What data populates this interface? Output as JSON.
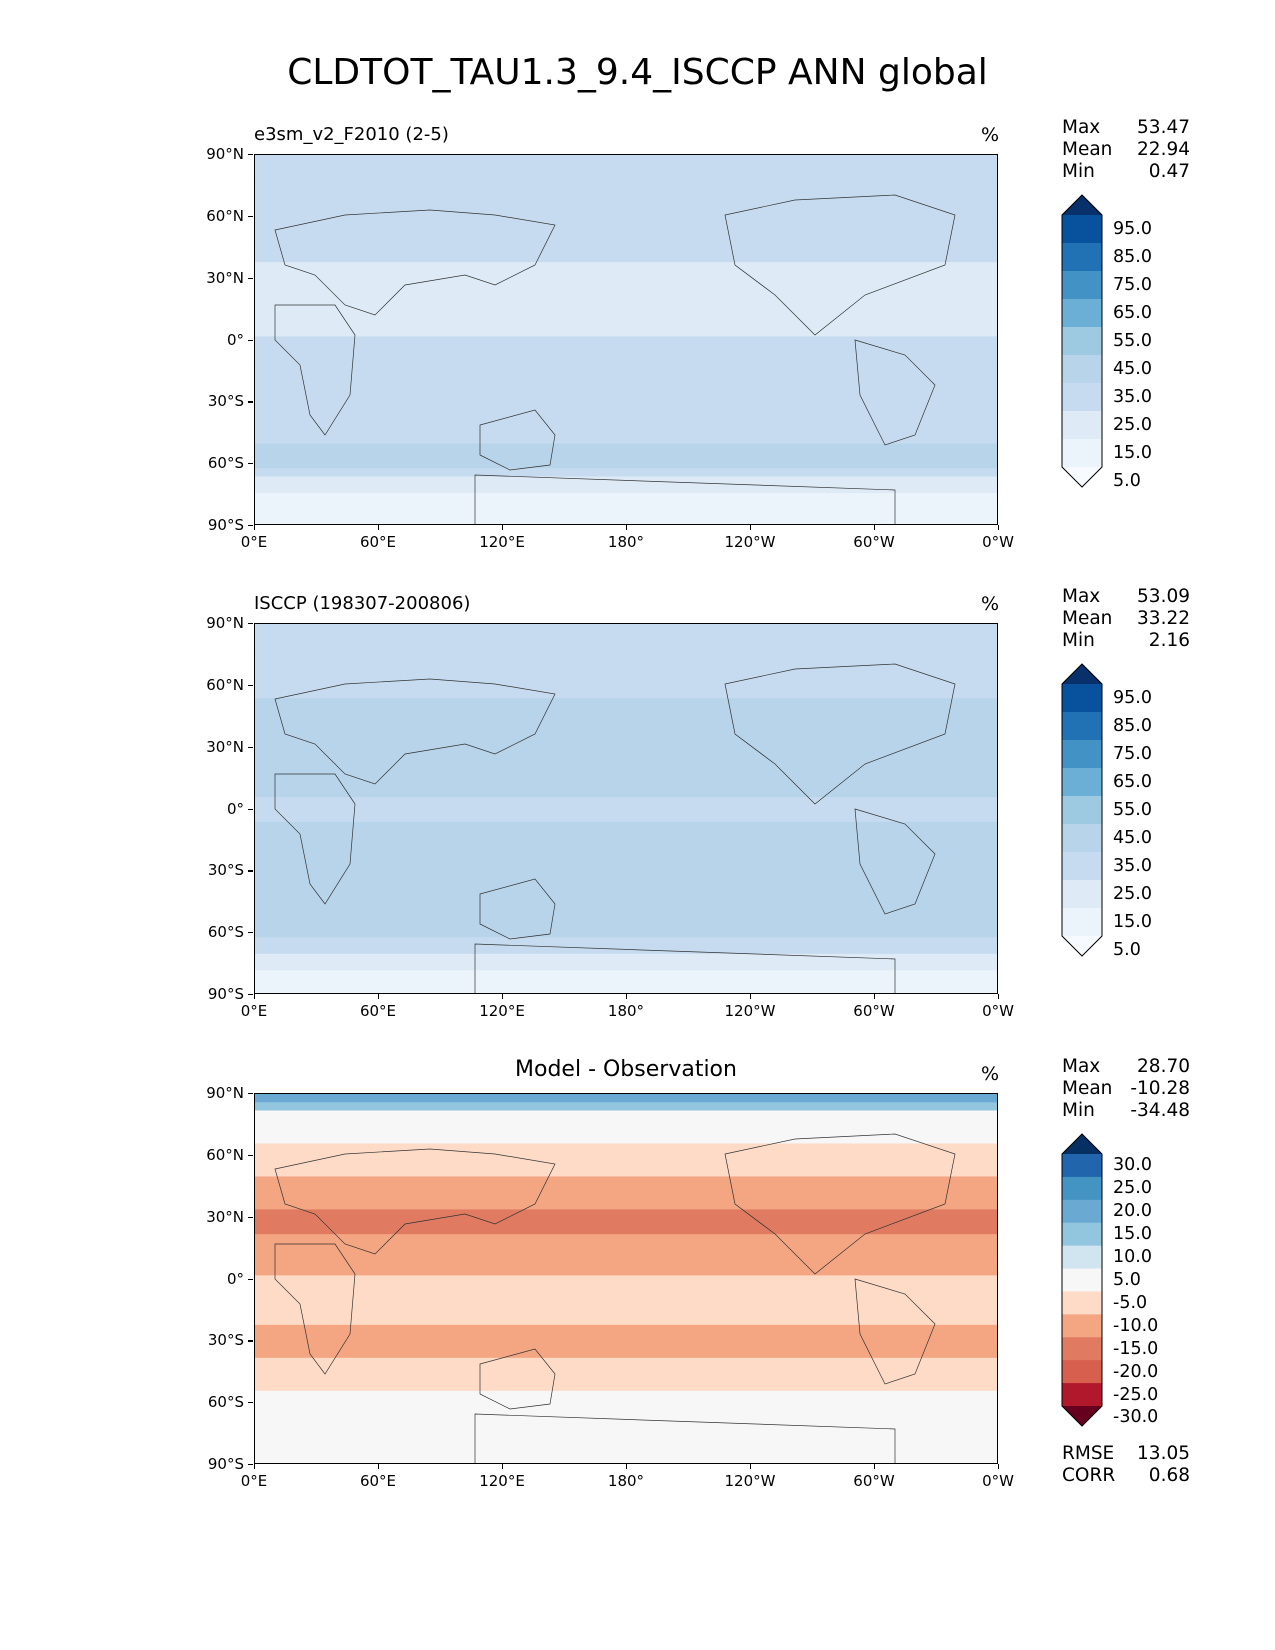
{
  "title": "CLDTOT_TAU1.3_9.4_ISCCP ANN global",
  "chart_data": [
    {
      "type": "heatmap",
      "label": "e3sm_v2_F2010 (2-5)",
      "units": "%",
      "stats": {
        "max": "53.47",
        "mean": "22.94",
        "min": "0.47"
      },
      "stat_labels": {
        "max": "Max",
        "mean": "Mean",
        "min": "Min"
      },
      "xticks": [
        "0°E",
        "60°E",
        "120°E",
        "180°",
        "120°W",
        "60°W",
        "0°W"
      ],
      "yticks": [
        "90°N",
        "60°N",
        "30°N",
        "0°",
        "30°S",
        "60°S",
        "90°S"
      ],
      "xlim": [
        0,
        360
      ],
      "ylim": [
        -90,
        90
      ],
      "colorbar": {
        "labels": [
          "95.0",
          "85.0",
          "75.0",
          "65.0",
          "55.0",
          "45.0",
          "35.0",
          "25.0",
          "15.0",
          "5.0"
        ],
        "colors": [
          "#08306b",
          "#08519c",
          "#2171b5",
          "#4292c6",
          "#6baed6",
          "#9ecae1",
          "#b7d4ea",
          "#c6dbef",
          "#deebf7",
          "#ebf3fb",
          "#f7fbff"
        ],
        "extend": "both"
      },
      "latitude_profile": {
        "lat": [
          90,
          80,
          70,
          60,
          50,
          40,
          30,
          20,
          10,
          0,
          -10,
          -20,
          -30,
          -40,
          -50,
          -60,
          -70,
          -80,
          -90
        ],
        "values": [
          28,
          28,
          27,
          26,
          27,
          26,
          19,
          21,
          24,
          25,
          28,
          25,
          28,
          32,
          35,
          36,
          18,
          8,
          8
        ]
      },
      "colormap": "blues"
    },
    {
      "type": "heatmap",
      "label": "ISCCP (198307-200806)",
      "units": "%",
      "stats": {
        "max": "53.09",
        "mean": "33.22",
        "min": "2.16"
      },
      "stat_labels": {
        "max": "Max",
        "mean": "Mean",
        "min": "Min"
      },
      "xticks": [
        "0°E",
        "60°E",
        "120°E",
        "180°",
        "120°W",
        "60°W",
        "0°W"
      ],
      "yticks": [
        "90°N",
        "60°N",
        "30°N",
        "0°",
        "30°S",
        "60°S",
        "90°S"
      ],
      "xlim": [
        0,
        360
      ],
      "ylim": [
        -90,
        90
      ],
      "colorbar": {
        "labels": [
          "95.0",
          "85.0",
          "75.0",
          "65.0",
          "55.0",
          "45.0",
          "35.0",
          "25.0",
          "15.0",
          "5.0"
        ],
        "colors": [
          "#08306b",
          "#08519c",
          "#2171b5",
          "#4292c6",
          "#6baed6",
          "#9ecae1",
          "#b7d4ea",
          "#c6dbef",
          "#deebf7",
          "#ebf3fb",
          "#f7fbff"
        ],
        "extend": "both"
      },
      "latitude_profile": {
        "lat": [
          90,
          80,
          70,
          60,
          50,
          40,
          30,
          20,
          10,
          0,
          -10,
          -20,
          -30,
          -40,
          -50,
          -60,
          -70,
          -80,
          -90
        ],
        "values": [
          30,
          32,
          33,
          34,
          36,
          40,
          38,
          35,
          36,
          34,
          36,
          35,
          40,
          42,
          42,
          40,
          25,
          12,
          10
        ]
      },
      "colormap": "blues"
    },
    {
      "type": "heatmap",
      "label": "Model - Observation",
      "units": "%",
      "stats": {
        "max": "28.70",
        "mean": "-10.28",
        "min": "-34.48"
      },
      "stat_labels": {
        "max": "Max",
        "mean": "Mean",
        "min": "Min"
      },
      "extra_stats": {
        "rmse": "13.05",
        "corr": "0.68"
      },
      "extra_stat_labels": {
        "rmse": "RMSE",
        "corr": "CORR"
      },
      "xticks": [
        "0°E",
        "60°E",
        "120°E",
        "180°",
        "120°W",
        "60°W",
        "0°W"
      ],
      "yticks": [
        "90°N",
        "60°N",
        "30°N",
        "0°",
        "30°S",
        "60°S",
        "90°S"
      ],
      "xlim": [
        0,
        360
      ],
      "ylim": [
        -90,
        90
      ],
      "colorbar": {
        "labels": [
          "30.0",
          "25.0",
          "20.0",
          "15.0",
          "10.0",
          "5.0",
          "-5.0",
          "-10.0",
          "-15.0",
          "-20.0",
          "-25.0",
          "-30.0"
        ],
        "colors": [
          "#053061",
          "#2166ac",
          "#4393c3",
          "#6aa9d1",
          "#92c5de",
          "#d1e5f0",
          "#f7f7f7",
          "#fddbc7",
          "#f4a582",
          "#e07b62",
          "#d6604d",
          "#b2182b",
          "#67001f"
        ],
        "extend": "both"
      },
      "latitude_profile": {
        "lat": [
          90,
          80,
          70,
          60,
          50,
          40,
          30,
          20,
          10,
          0,
          -10,
          -20,
          -30,
          -40,
          -50,
          -60,
          -70,
          -80,
          -90
        ],
        "values": [
          22,
          3,
          -3,
          -8,
          -10,
          -13,
          -18,
          -15,
          -12,
          -10,
          -9,
          -10,
          -12,
          -10,
          -8,
          0,
          2,
          0,
          0
        ]
      },
      "colormap": "diverging"
    }
  ]
}
